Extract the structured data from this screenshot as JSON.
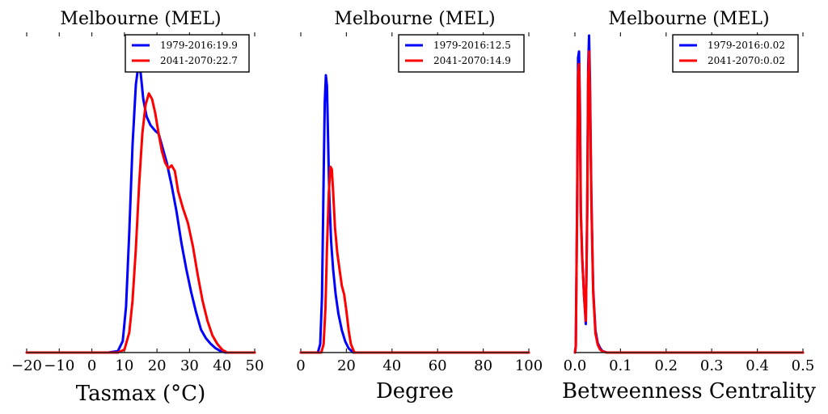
{
  "chart_data": [
    {
      "type": "line",
      "title": "Melbourne (MEL)",
      "xlabel": "Tasmax ($^\\circ$C)",
      "xlabel_display": "Tasmax (°C)",
      "ylabel": "",
      "xlim": [
        -20,
        50
      ],
      "xticks": [
        -20,
        -10,
        0,
        10,
        20,
        30,
        40,
        50
      ],
      "xtick_labels": [
        "−20",
        "−10",
        "0",
        "10",
        "20",
        "30",
        "40",
        "50"
      ],
      "y_units": "relative density (no y-axis ticks shown)",
      "legend": "top-right",
      "series": [
        {
          "name": "1979-2016:19.9",
          "color": "#0000ff",
          "x": [
            -20,
            5,
            8,
            9.5,
            10.5,
            11.5,
            12.5,
            13.5,
            14.3,
            15,
            15.8,
            16.8,
            18,
            19.5,
            20.5,
            21.5,
            23,
            24.5,
            26,
            27.5,
            29,
            30.5,
            32,
            33.5,
            35,
            36.5,
            38,
            39.5,
            41,
            50
          ],
          "y": [
            0,
            0,
            0.005,
            0.04,
            0.16,
            0.42,
            0.72,
            0.93,
            1.0,
            0.97,
            0.88,
            0.82,
            0.79,
            0.77,
            0.76,
            0.72,
            0.66,
            0.58,
            0.49,
            0.38,
            0.29,
            0.21,
            0.14,
            0.08,
            0.05,
            0.03,
            0.015,
            0.005,
            0,
            0
          ]
        },
        {
          "name": "2041-2070:22.7",
          "color": "#ff0000",
          "x": [
            -20,
            8,
            10,
            11.5,
            12.5,
            13.5,
            14.5,
            15.5,
            16.5,
            17.5,
            18.5,
            19.5,
            20.5,
            21.5,
            22.5,
            23.5,
            24.5,
            25.5,
            26.5,
            28,
            29.5,
            31,
            32.5,
            34,
            35.5,
            37,
            38.5,
            40,
            41.5,
            50
          ],
          "y": [
            0,
            0,
            0.01,
            0.07,
            0.18,
            0.36,
            0.58,
            0.76,
            0.86,
            0.9,
            0.88,
            0.83,
            0.76,
            0.7,
            0.66,
            0.64,
            0.65,
            0.63,
            0.56,
            0.5,
            0.45,
            0.37,
            0.27,
            0.18,
            0.11,
            0.06,
            0.03,
            0.01,
            0,
            0
          ]
        }
      ]
    },
    {
      "type": "line",
      "title": "Melbourne (MEL)",
      "xlabel": "Degree",
      "xlabel_display": "Degree",
      "ylabel": "",
      "xlim": [
        0,
        100
      ],
      "xticks": [
        0,
        20,
        40,
        60,
        80,
        100
      ],
      "xtick_labels": [
        "0",
        "20",
        "40",
        "60",
        "80",
        "100"
      ],
      "y_units": "relative density (no y-axis ticks shown)",
      "legend": "top-right",
      "series": [
        {
          "name": "1979-2016:12.5",
          "color": "#0000ff",
          "x": [
            0,
            7.5,
            8.5,
            9.3,
            10,
            10.5,
            11,
            11.5,
            12,
            12.5,
            13.3,
            14.2,
            15.3,
            16.5,
            18,
            19.5,
            21,
            23,
            100
          ],
          "y": [
            0,
            0,
            0.03,
            0.2,
            0.62,
            0.9,
            1.0,
            0.96,
            0.76,
            0.56,
            0.4,
            0.3,
            0.21,
            0.14,
            0.08,
            0.04,
            0.015,
            0,
            0
          ]
        },
        {
          "name": "2041-2070:14.9",
          "color": "#ff0000",
          "x": [
            0,
            9,
            10,
            10.8,
            11.5,
            12.3,
            13,
            13.6,
            14.2,
            15,
            16,
            17,
            18,
            19,
            20,
            21,
            22,
            23.5,
            100
          ],
          "y": [
            0,
            0,
            0.03,
            0.16,
            0.38,
            0.58,
            0.67,
            0.66,
            0.58,
            0.45,
            0.36,
            0.3,
            0.24,
            0.21,
            0.15,
            0.08,
            0.03,
            0,
            0
          ]
        }
      ]
    },
    {
      "type": "line",
      "title": "Melbourne (MEL)",
      "xlabel": "Betweenness Centrality",
      "xlabel_display": "Betweenness Centrality",
      "ylabel": "",
      "xlim": [
        0.0,
        0.5
      ],
      "xticks": [
        0.0,
        0.1,
        0.2,
        0.3,
        0.4,
        0.5
      ],
      "xtick_labels": [
        "0.0",
        "0.1",
        "0.2",
        "0.3",
        "0.4",
        "0.5"
      ],
      "y_units": "relative density (no y-axis ticks shown)",
      "legend": "top-right",
      "series": [
        {
          "name": "1979-2016:0.02",
          "color": "#0000ff",
          "x": [
            0.0,
            0.002,
            0.005,
            0.007,
            0.009,
            0.011,
            0.013,
            0.016,
            0.02,
            0.024,
            0.027,
            0.029,
            0.031,
            0.033,
            0.036,
            0.04,
            0.045,
            0.05,
            0.055,
            0.06,
            0.07,
            0.5
          ],
          "y": [
            0,
            0.02,
            0.5,
            0.93,
            0.95,
            0.78,
            0.45,
            0.3,
            0.18,
            0.09,
            0.45,
            0.9,
            1.0,
            0.86,
            0.5,
            0.2,
            0.07,
            0.03,
            0.015,
            0.005,
            0,
            0
          ]
        },
        {
          "name": "2041-2070:0.02",
          "color": "#ff0000",
          "x": [
            0.0,
            0.002,
            0.005,
            0.007,
            0.009,
            0.011,
            0.013,
            0.016,
            0.02,
            0.024,
            0.027,
            0.029,
            0.031,
            0.033,
            0.036,
            0.04,
            0.045,
            0.05,
            0.055,
            0.06,
            0.07,
            0.5
          ],
          "y": [
            0,
            0.02,
            0.47,
            0.88,
            0.91,
            0.75,
            0.44,
            0.3,
            0.18,
            0.1,
            0.43,
            0.86,
            0.95,
            0.82,
            0.48,
            0.19,
            0.06,
            0.025,
            0.01,
            0.004,
            0,
            0
          ]
        }
      ]
    }
  ]
}
